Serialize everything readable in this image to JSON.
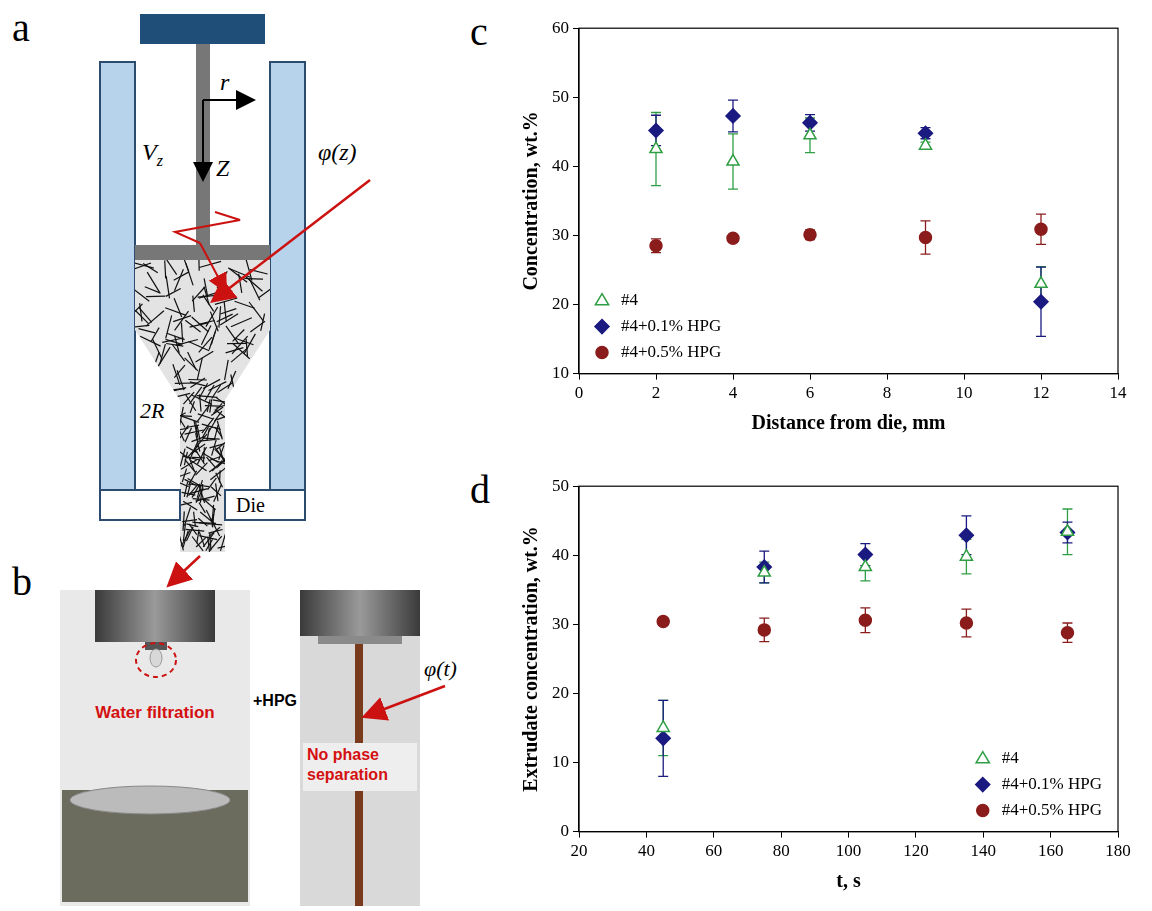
{
  "panel_letters": [
    "a",
    "b",
    "c",
    "d"
  ],
  "diagram": {
    "labels": {
      "r": "r",
      "velocity": "V",
      "velocity_subscript": "z",
      "z": "Z",
      "phi": "φ(z)",
      "radius": "2R",
      "die": "Die"
    }
  },
  "photos": {
    "left": "Water filtration",
    "middle": "+HPG",
    "right": "No phase separation",
    "phi": "φ(t)"
  },
  "chart_data": [
    {
      "type": "scatter",
      "x_label": "Distance from die, mm",
      "y_label": "Concentration, wt.%",
      "xlim": [
        0,
        14
      ],
      "xticks": [
        0,
        2,
        4,
        6,
        8,
        10,
        12,
        14
      ],
      "ylim": [
        10,
        60
      ],
      "yticks": [
        10,
        20,
        30,
        40,
        50,
        60
      ],
      "grid": false,
      "legend": "lower left",
      "x": [
        2,
        4,
        6,
        9,
        12
      ],
      "series": [
        {
          "name": "#4",
          "color": "#2f9e44",
          "marker": "triangle-open",
          "values": [
            42.5,
            40.7,
            44.5,
            43.0,
            23.0
          ],
          "errors": [
            5.3,
            4.0,
            2.5,
            0.5,
            2.5
          ]
        },
        {
          "name": "#4+0.1% HPG",
          "color": "#1a1a80",
          "marker": "diamond",
          "values": [
            45.2,
            47.3,
            46.3,
            44.8,
            20.4
          ],
          "errors": [
            2.2,
            2.3,
            1.2,
            0.8,
            5.0
          ]
        },
        {
          "name": "#4+0.5% HPG",
          "color": "#8b1c1c",
          "marker": "circle",
          "values": [
            28.5,
            29.6,
            30.1,
            29.7,
            30.9
          ],
          "errors": [
            1.0,
            0.5,
            0.7,
            2.4,
            2.2
          ]
        }
      ]
    },
    {
      "type": "scatter",
      "x_label": "t, s",
      "y_label": "Extrudate concentration, wt.%",
      "xlim": [
        20,
        180
      ],
      "xticks": [
        20,
        40,
        60,
        80,
        100,
        120,
        140,
        160,
        180
      ],
      "ylim": [
        0,
        50
      ],
      "yticks": [
        0,
        10,
        20,
        30,
        40,
        50
      ],
      "grid": false,
      "legend": "lower right",
      "x": [
        45,
        75,
        105,
        135,
        165
      ],
      "series": [
        {
          "name": "#4",
          "color": "#2f9e44",
          "marker": "triangle-open",
          "values": [
            15.0,
            37.5,
            38.3,
            39.8,
            43.4
          ],
          "errors": [
            4.0,
            1.5,
            2.0,
            2.5,
            3.3
          ]
        },
        {
          "name": "#4+0.1% HPG",
          "color": "#1a1a80",
          "marker": "diamond",
          "values": [
            13.5,
            38.3,
            40.1,
            42.9,
            43.3
          ],
          "errors": [
            5.5,
            2.3,
            1.6,
            2.8,
            1.5
          ]
        },
        {
          "name": "#4+0.5% HPG",
          "color": "#8b1c1c",
          "marker": "circle",
          "values": [
            30.4,
            29.2,
            30.6,
            30.2,
            28.8
          ],
          "errors": [
            0.5,
            1.7,
            1.8,
            2.0,
            1.4
          ]
        }
      ]
    }
  ]
}
